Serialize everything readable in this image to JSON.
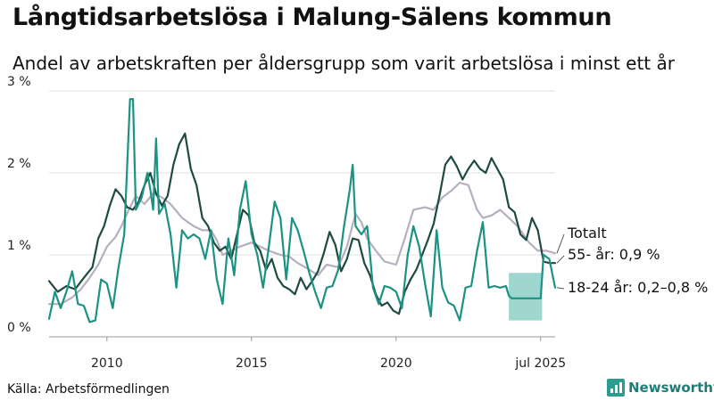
{
  "title": "Långtidsarbetslösa i Malung-Sälens kommun",
  "subtitle": "Andel av arbetskraften per åldersgrupp som varit arbetslösa i minst ett år",
  "source": "Källa: Arbetsförmedlingen",
  "brand": "Newsworthy",
  "colors": {
    "totalt": "#b4b0c0",
    "age55": "#1f4a42",
    "age18_24": "#1c9283",
    "band": "#7fcac0"
  },
  "chart_data": {
    "type": "line",
    "ylim": [
      0,
      3
    ],
    "xlim": [
      2008.0,
      2025.5
    ],
    "y_ticks": [
      {
        "value": 0,
        "label": "0 %"
      },
      {
        "value": 1,
        "label": "1 %"
      },
      {
        "value": 2,
        "label": "2 %"
      },
      {
        "value": 3,
        "label": "3 %"
      }
    ],
    "x_ticks": [
      {
        "value": 2010,
        "label": "2010"
      },
      {
        "value": 2015,
        "label": "2015"
      },
      {
        "value": 2020,
        "label": "2020"
      },
      {
        "value": 2025,
        "label": "jul 2025"
      }
    ],
    "grid": true,
    "series": [
      {
        "key": "totalt",
        "label": "Totalt",
        "points": [
          [
            2008.0,
            0.4
          ],
          [
            2008.4,
            0.4
          ],
          [
            2008.8,
            0.48
          ],
          [
            2009.1,
            0.58
          ],
          [
            2009.4,
            0.72
          ],
          [
            2009.7,
            0.88
          ],
          [
            2010.0,
            1.1
          ],
          [
            2010.3,
            1.22
          ],
          [
            2010.5,
            1.35
          ],
          [
            2010.8,
            1.58
          ],
          [
            2011.0,
            1.72
          ],
          [
            2011.3,
            1.62
          ],
          [
            2011.6,
            1.75
          ],
          [
            2011.9,
            1.7
          ],
          [
            2012.2,
            1.62
          ],
          [
            2012.6,
            1.45
          ],
          [
            2013.0,
            1.35
          ],
          [
            2013.3,
            1.3
          ],
          [
            2013.6,
            1.3
          ],
          [
            2013.8,
            1.18
          ],
          [
            2014.0,
            1.0
          ],
          [
            2014.3,
            1.05
          ],
          [
            2014.6,
            1.1
          ],
          [
            2015.0,
            1.15
          ],
          [
            2015.3,
            1.1
          ],
          [
            2015.6,
            1.05
          ],
          [
            2016.0,
            1.0
          ],
          [
            2016.3,
            0.98
          ],
          [
            2016.6,
            0.9
          ],
          [
            2017.0,
            0.82
          ],
          [
            2017.3,
            0.75
          ],
          [
            2017.6,
            0.88
          ],
          [
            2018.0,
            0.85
          ],
          [
            2018.3,
            1.1
          ],
          [
            2018.6,
            1.5
          ],
          [
            2018.8,
            1.4
          ],
          [
            2019.0,
            1.2
          ],
          [
            2019.3,
            1.05
          ],
          [
            2019.6,
            0.92
          ],
          [
            2020.0,
            0.88
          ],
          [
            2020.3,
            1.2
          ],
          [
            2020.6,
            1.55
          ],
          [
            2021.0,
            1.58
          ],
          [
            2021.3,
            1.55
          ],
          [
            2021.6,
            1.7
          ],
          [
            2021.9,
            1.78
          ],
          [
            2022.2,
            1.88
          ],
          [
            2022.5,
            1.85
          ],
          [
            2022.8,
            1.55
          ],
          [
            2023.0,
            1.45
          ],
          [
            2023.3,
            1.48
          ],
          [
            2023.6,
            1.55
          ],
          [
            2023.9,
            1.45
          ],
          [
            2024.2,
            1.35
          ],
          [
            2024.6,
            1.15
          ],
          [
            2024.9,
            1.05
          ],
          [
            2025.2,
            1.05
          ],
          [
            2025.5,
            1.02
          ]
        ]
      },
      {
        "key": "age55",
        "label": "55- år: 0,9 %",
        "points": [
          [
            2008.0,
            0.68
          ],
          [
            2008.3,
            0.55
          ],
          [
            2008.6,
            0.62
          ],
          [
            2008.9,
            0.58
          ],
          [
            2009.2,
            0.72
          ],
          [
            2009.5,
            0.85
          ],
          [
            2009.7,
            1.2
          ],
          [
            2009.9,
            1.35
          ],
          [
            2010.1,
            1.6
          ],
          [
            2010.3,
            1.8
          ],
          [
            2010.5,
            1.72
          ],
          [
            2010.7,
            1.58
          ],
          [
            2010.9,
            1.55
          ],
          [
            2011.1,
            1.65
          ],
          [
            2011.3,
            1.85
          ],
          [
            2011.5,
            2.0
          ],
          [
            2011.7,
            1.75
          ],
          [
            2011.9,
            1.6
          ],
          [
            2012.1,
            1.72
          ],
          [
            2012.3,
            2.1
          ],
          [
            2012.5,
            2.35
          ],
          [
            2012.7,
            2.48
          ],
          [
            2012.9,
            2.05
          ],
          [
            2013.1,
            1.85
          ],
          [
            2013.3,
            1.45
          ],
          [
            2013.5,
            1.35
          ],
          [
            2013.7,
            1.15
          ],
          [
            2013.9,
            1.05
          ],
          [
            2014.1,
            1.1
          ],
          [
            2014.3,
            0.95
          ],
          [
            2014.5,
            1.25
          ],
          [
            2014.7,
            1.55
          ],
          [
            2014.9,
            1.48
          ],
          [
            2015.1,
            1.15
          ],
          [
            2015.3,
            1.05
          ],
          [
            2015.5,
            0.82
          ],
          [
            2015.7,
            0.95
          ],
          [
            2015.9,
            0.72
          ],
          [
            2016.1,
            0.62
          ],
          [
            2016.3,
            0.58
          ],
          [
            2016.5,
            0.52
          ],
          [
            2016.7,
            0.72
          ],
          [
            2016.9,
            0.58
          ],
          [
            2017.1,
            0.68
          ],
          [
            2017.3,
            0.8
          ],
          [
            2017.5,
            1.02
          ],
          [
            2017.7,
            1.28
          ],
          [
            2017.9,
            1.12
          ],
          [
            2018.1,
            0.8
          ],
          [
            2018.3,
            0.95
          ],
          [
            2018.5,
            1.2
          ],
          [
            2018.7,
            1.18
          ],
          [
            2018.9,
            0.9
          ],
          [
            2019.1,
            0.75
          ],
          [
            2019.3,
            0.52
          ],
          [
            2019.5,
            0.38
          ],
          [
            2019.7,
            0.42
          ],
          [
            2019.9,
            0.32
          ],
          [
            2020.1,
            0.28
          ],
          [
            2020.3,
            0.55
          ],
          [
            2020.5,
            0.7
          ],
          [
            2020.7,
            0.82
          ],
          [
            2020.9,
            1.0
          ],
          [
            2021.1,
            1.18
          ],
          [
            2021.3,
            1.38
          ],
          [
            2021.5,
            1.72
          ],
          [
            2021.7,
            2.1
          ],
          [
            2021.9,
            2.2
          ],
          [
            2022.1,
            2.08
          ],
          [
            2022.3,
            1.92
          ],
          [
            2022.5,
            2.05
          ],
          [
            2022.7,
            2.15
          ],
          [
            2022.9,
            2.05
          ],
          [
            2023.1,
            2.0
          ],
          [
            2023.3,
            2.18
          ],
          [
            2023.5,
            2.05
          ],
          [
            2023.7,
            1.92
          ],
          [
            2023.9,
            1.58
          ],
          [
            2024.1,
            1.52
          ],
          [
            2024.3,
            1.25
          ],
          [
            2024.5,
            1.18
          ],
          [
            2024.7,
            1.45
          ],
          [
            2024.9,
            1.3
          ],
          [
            2025.1,
            0.92
          ],
          [
            2025.3,
            0.9
          ],
          [
            2025.5,
            0.9
          ]
        ]
      },
      {
        "key": "age18_24",
        "label": "18-24 år: 0,2–0,8 %",
        "points": [
          [
            2008.0,
            0.22
          ],
          [
            2008.2,
            0.55
          ],
          [
            2008.4,
            0.35
          ],
          [
            2008.6,
            0.55
          ],
          [
            2008.8,
            0.8
          ],
          [
            2009.0,
            0.4
          ],
          [
            2009.2,
            0.38
          ],
          [
            2009.4,
            0.18
          ],
          [
            2009.6,
            0.2
          ],
          [
            2009.8,
            0.7
          ],
          [
            2010.0,
            0.65
          ],
          [
            2010.2,
            0.35
          ],
          [
            2010.4,
            0.85
          ],
          [
            2010.6,
            1.25
          ],
          [
            2010.8,
            2.9
          ],
          [
            2010.9,
            2.9
          ],
          [
            2011.0,
            1.55
          ],
          [
            2011.2,
            1.7
          ],
          [
            2011.4,
            2.0
          ],
          [
            2011.5,
            1.8
          ],
          [
            2011.6,
            1.55
          ],
          [
            2011.7,
            2.42
          ],
          [
            2011.8,
            1.5
          ],
          [
            2012.0,
            1.62
          ],
          [
            2012.2,
            1.25
          ],
          [
            2012.4,
            0.6
          ],
          [
            2012.6,
            1.3
          ],
          [
            2012.8,
            1.2
          ],
          [
            2013.0,
            1.25
          ],
          [
            2013.2,
            1.2
          ],
          [
            2013.4,
            0.95
          ],
          [
            2013.6,
            1.3
          ],
          [
            2013.8,
            0.7
          ],
          [
            2014.0,
            0.4
          ],
          [
            2014.2,
            1.2
          ],
          [
            2014.4,
            0.75
          ],
          [
            2014.6,
            1.55
          ],
          [
            2014.8,
            1.9
          ],
          [
            2015.0,
            1.25
          ],
          [
            2015.2,
            1.0
          ],
          [
            2015.4,
            0.6
          ],
          [
            2015.6,
            1.1
          ],
          [
            2015.8,
            1.65
          ],
          [
            2016.0,
            1.45
          ],
          [
            2016.2,
            0.7
          ],
          [
            2016.4,
            1.45
          ],
          [
            2016.6,
            1.3
          ],
          [
            2016.8,
            1.05
          ],
          [
            2017.0,
            0.78
          ],
          [
            2017.2,
            0.55
          ],
          [
            2017.4,
            0.35
          ],
          [
            2017.6,
            0.6
          ],
          [
            2017.8,
            0.62
          ],
          [
            2018.0,
            0.82
          ],
          [
            2018.2,
            1.35
          ],
          [
            2018.4,
            1.8
          ],
          [
            2018.5,
            2.1
          ],
          [
            2018.6,
            1.35
          ],
          [
            2018.8,
            1.25
          ],
          [
            2019.0,
            1.35
          ],
          [
            2019.1,
            1.0
          ],
          [
            2019.2,
            0.6
          ],
          [
            2019.3,
            0.5
          ],
          [
            2019.4,
            0.4
          ],
          [
            2019.6,
            0.62
          ],
          [
            2019.8,
            0.6
          ],
          [
            2020.0,
            0.55
          ],
          [
            2020.2,
            0.35
          ],
          [
            2020.4,
            1.0
          ],
          [
            2020.6,
            1.35
          ],
          [
            2020.8,
            1.1
          ],
          [
            2021.0,
            0.65
          ],
          [
            2021.2,
            0.25
          ],
          [
            2021.4,
            1.3
          ],
          [
            2021.6,
            0.6
          ],
          [
            2021.8,
            0.42
          ],
          [
            2022.0,
            0.38
          ],
          [
            2022.2,
            0.2
          ],
          [
            2022.4,
            0.6
          ],
          [
            2022.6,
            0.62
          ],
          [
            2022.8,
            1.05
          ],
          [
            2023.0,
            1.4
          ],
          [
            2023.2,
            0.6
          ],
          [
            2023.4,
            0.62
          ],
          [
            2023.6,
            0.6
          ],
          [
            2023.8,
            0.62
          ],
          [
            2023.9,
            0.5
          ],
          [
            2024.0,
            0.47
          ],
          [
            2024.5,
            0.47
          ],
          [
            2025.0,
            0.47
          ],
          [
            2025.1,
            1.0
          ],
          [
            2025.3,
            0.95
          ],
          [
            2025.5,
            0.6
          ]
        ]
      }
    ],
    "band": {
      "series": "age18_24",
      "x_start": 2023.9,
      "x_end": 2025.05,
      "y_low": 0.2,
      "y_high": 0.78
    }
  }
}
